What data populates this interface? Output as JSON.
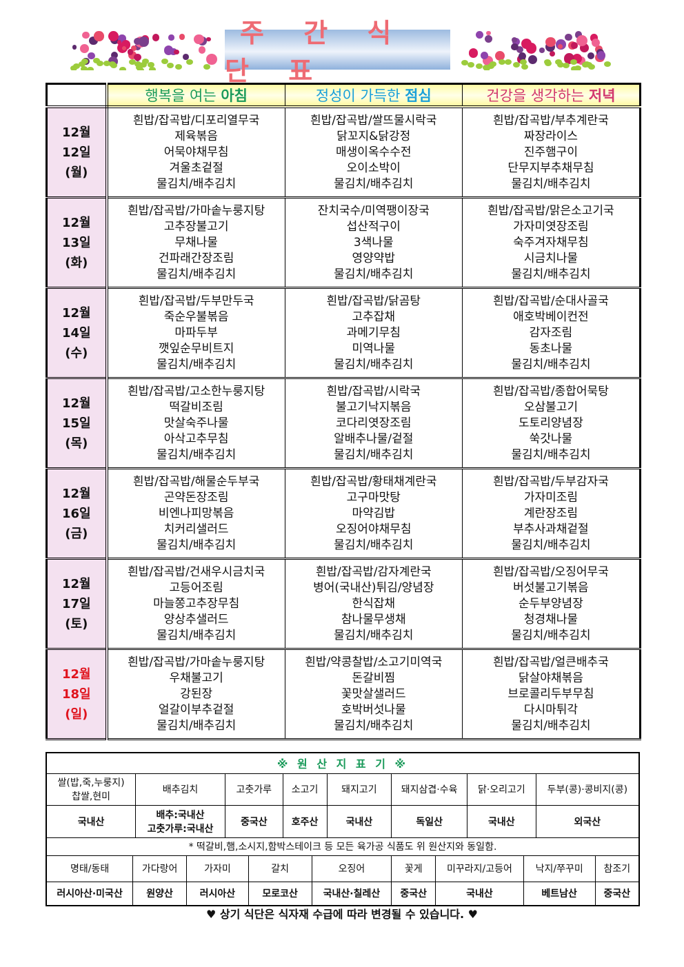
{
  "title": "주 간 식 단 표",
  "header": [
    {
      "pre": "행복을 여는 ",
      "bold": "아침",
      "color": "#1a9a5a"
    },
    {
      "pre": "정성이 가득한 ",
      "bold": "점심",
      "color": "#1aa0d8"
    },
    {
      "pre": "건강을 생각하는 ",
      "bold": "저녁",
      "color": "#d2386e"
    }
  ],
  "days": [
    {
      "month": "12월",
      "day": "12일",
      "weekday": "(월)",
      "color": "#111111",
      "breakfast": [
        "흰밥/잡곡밥/디포리열무국",
        "제육볶음",
        "어묵야채무침",
        "겨울초겉절",
        "물김치/배추김치"
      ],
      "lunch": [
        "흰밥/잡곡밥/쌀뜨물시락국",
        "닭꼬지&닭강정",
        "매생이옥수수전",
        "오이소박이",
        "물김치/배추김치"
      ],
      "dinner": [
        "흰밥/잡곡밥/부추계란국",
        "짜장라이스",
        "진주햄구이",
        "단무지부추채무침",
        "물김치/배추김치"
      ]
    },
    {
      "month": "12월",
      "day": "13일",
      "weekday": "(화)",
      "color": "#111111",
      "breakfast": [
        "흰밥/잡곡밥/가마솥누룽지탕",
        "고추장불고기",
        "무채나물",
        "건파래간장조림",
        "물김치/배추김치"
      ],
      "lunch": [
        "잔치국수/미역팽이장국",
        "섭산적구이",
        "3색나물",
        "영양약밥",
        "물김치/배추김치"
      ],
      "dinner": [
        "흰밥/잡곡밥/맑은소고기국",
        "가자미엿장조림",
        "숙주겨자채무침",
        "시금치나물",
        "물김치/배추김치"
      ]
    },
    {
      "month": "12월",
      "day": "14일",
      "weekday": "(수)",
      "color": "#111111",
      "breakfast": [
        "흰밥/잡곡밥/두부만두국",
        "죽순우불볶음",
        "마파두부",
        "깻잎순무비트지",
        "물김치/배추김치"
      ],
      "lunch": [
        "흰밥/잡곡밥/닭곰탕",
        "고추잡채",
        "과메기무침",
        "미역나물",
        "물김치/배추김치"
      ],
      "dinner": [
        "흰밥/잡곡밥/순대사골국",
        "애호박베이컨전",
        "감자조림",
        "동초나물",
        "물김치/배추김치"
      ]
    },
    {
      "month": "12월",
      "day": "15일",
      "weekday": "(목)",
      "color": "#111111",
      "breakfast": [
        "흰밥/잡곡밥/고소한누룽지탕",
        "떡갈비조림",
        "맛살숙주나물",
        "아삭고추무침",
        "물김치/배추김치"
      ],
      "lunch": [
        "흰밥/잡곡밥/시락국",
        "불고기낙지볶음",
        "코다리엿장조림",
        "알배추나물/겉절",
        "물김치/배추김치"
      ],
      "dinner": [
        "흰밥/잡곡밥/종합어묵탕",
        "오삼불고기",
        "도토리양념장",
        "쑥갓나물",
        "물김치/배추김치"
      ]
    },
    {
      "month": "12월",
      "day": "16일",
      "weekday": "(금)",
      "color": "#111111",
      "breakfast": [
        "흰밥/잡곡밥/해물순두부국",
        "곤약돈장조림",
        "비엔나피망볶음",
        "치커리샐러드",
        "물김치/배추김치"
      ],
      "lunch": [
        "흰밥/잡곡밥/황태채계란국",
        "고구마맛탕",
        "마약김밥",
        "오징어야채무침",
        "물김치/배추김치"
      ],
      "dinner": [
        "흰밥/잡곡밥/두부감자국",
        "가자미조림",
        "계란장조림",
        "부추사과채겉절",
        "물김치/배추김치"
      ]
    },
    {
      "month": "12월",
      "day": "17일",
      "weekday": "(토)",
      "color": "#111111",
      "breakfast": [
        "흰밥/잡곡밥/건새우시금치국",
        "고등어조림",
        "마늘쫑고추장무침",
        "양상추샐러드",
        "물김치/배추김치"
      ],
      "lunch": [
        "흰밥/잡곡밥/감자계란국",
        "병어(국내산)튀김/양념장",
        "한식잡채",
        "참나물무생채",
        "물김치/배추김치"
      ],
      "dinner": [
        "흰밥/잡곡밥/오징어무국",
        "버섯불고기볶음",
        "순두부양념장",
        "청경채나물",
        "물김치/배추김치"
      ]
    },
    {
      "month": "12월",
      "day": "18일",
      "weekday": "(일)",
      "color": "#e0141e",
      "breakfast": [
        "흰밥/잡곡밥/가마솥누룽지탕",
        "우채불고기",
        "강된장",
        "얼갈이부추겉절",
        "물김치/배추김치"
      ],
      "lunch": [
        "흰밥/약콩찰밥/소고기미역국",
        "돈갈비찜",
        "꽃맛살샐러드",
        "호박버섯나물",
        "물김치/배추김치"
      ],
      "dinner": [
        "흰밥/잡곡밥/얼큰배추국",
        "닭살야채볶음",
        "브로콜리두부무침",
        "다시마튀각",
        "물김치/배추김치"
      ]
    }
  ],
  "origin": {
    "title": "※ 원 산 지 표 기 ※",
    "title_color": "#1a9a5a",
    "row1_items": [
      "쌀(밥,죽,누룽지)\n찹쌀,현미",
      "배추김치",
      "고춧가루",
      "소고기",
      "돼지고기",
      "돼지삼겹·수육",
      "닭·오리고기",
      "두부(콩)·콩비지(콩)"
    ],
    "row1_values": [
      "국내산",
      "배추:국내산\n고춧가루:국내산",
      "중국산",
      "호주산",
      "국내산",
      "독일산",
      "국내산",
      "외국산"
    ],
    "note": "* 떡갈비,햄,소시지,함박스테이크 등 모든 육가공 식품도 위 원산지와 동일함.",
    "row2_items": [
      "명태/동태",
      "가다랑어",
      "가자미",
      "갈치",
      "오징어",
      "꽃게",
      "미꾸라지/고등어",
      "낙지/쭈꾸미",
      "참조기"
    ],
    "row2_values": [
      "러시아산·미국산",
      "원양산",
      "러시아산",
      "모로코산",
      "국내산·칠레산",
      "중국산",
      "국내산",
      "베트남산",
      "중국산"
    ]
  },
  "footer": "♥ 상기 식단은 식자재 수급에 따라 변경될 수 있습니다. ♥"
}
